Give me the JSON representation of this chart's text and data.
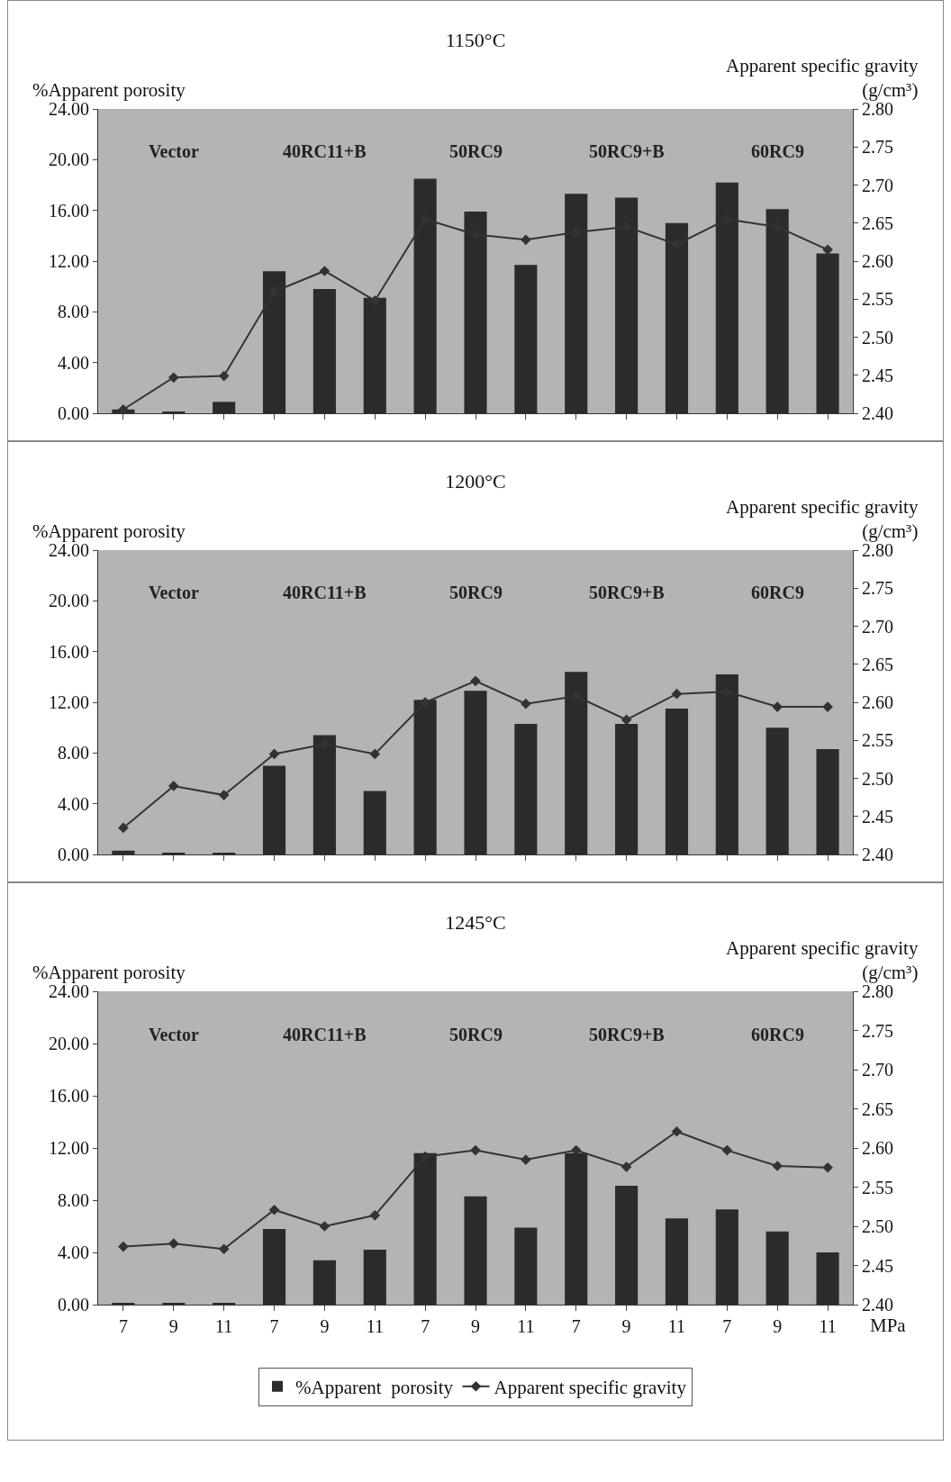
{
  "chart_data": [
    {
      "type": "bar",
      "title": "1150°C",
      "ylabel": "%Apparent porosity",
      "y2label": "Apparent specific gravity (g/cm³)",
      "tick_labels": "y",
      "legend": false,
      "grid": false,
      "annotations": [
        "Vector",
        "40RC11+B",
        "50RC9",
        "50RC9+B",
        "60RC9"
      ],
      "categories": [
        "7",
        "9",
        "11",
        "7",
        "9",
        "11",
        "7",
        "9",
        "11",
        "7",
        "9",
        "11",
        "7",
        "9",
        "11"
      ],
      "ylim": [
        0,
        24
      ],
      "yticks": [
        {
          "value": 0,
          "label": "0.00"
        },
        {
          "value": 4,
          "label": "4.00"
        },
        {
          "value": 8,
          "label": "8.00"
        },
        {
          "value": 12,
          "label": "12.00"
        },
        {
          "value": 16,
          "label": "16.00"
        },
        {
          "value": 20,
          "label": "20.00"
        },
        {
          "value": 24,
          "label": "24.00"
        }
      ],
      "y2lim": [
        2.4,
        2.8
      ],
      "y2ticks": [
        {
          "value": 2.4,
          "label": "2.40"
        },
        {
          "value": 2.45,
          "label": "2.45"
        },
        {
          "value": 2.5,
          "label": "2.50"
        },
        {
          "value": 2.55,
          "label": "2.55"
        },
        {
          "value": 2.6,
          "label": "2.60"
        },
        {
          "value": 2.65,
          "label": "2.65"
        },
        {
          "value": 2.7,
          "label": "2.70"
        },
        {
          "value": 2.75,
          "label": "2.75"
        },
        {
          "value": 2.8,
          "label": "2.80"
        }
      ],
      "series": [
        {
          "color": "#2b2b2b",
          "values": [
            0.3,
            0.1,
            0.9,
            11.2,
            9.8,
            9.1,
            18.5,
            15.9,
            11.7,
            17.3,
            17.0,
            15.0,
            18.2,
            16.1,
            12.6
          ]
        },
        {
          "type": "line",
          "axis": "y2",
          "color": "#333333",
          "marker": "diamond",
          "line_style": "solid",
          "values": [
            2.405,
            2.447,
            2.449,
            2.56,
            2.587,
            2.548,
            2.655,
            2.635,
            2.628,
            2.638,
            2.645,
            2.622,
            2.655,
            2.645,
            2.615
          ]
        }
      ]
    },
    {
      "type": "bar",
      "title": "1200°C",
      "ylabel": "%Apparent porosity",
      "y2label": "Apparent specific gravity (g/cm³)",
      "tick_labels": "y",
      "legend": false,
      "grid": false,
      "annotations": [
        "Vector",
        "40RC11+B",
        "50RC9",
        "50RC9+B",
        "60RC9"
      ],
      "categories": [
        "7",
        "9",
        "11",
        "7",
        "9",
        "11",
        "7",
        "9",
        "11",
        "7",
        "9",
        "11",
        "7",
        "9",
        "11"
      ],
      "ylim": [
        0,
        24
      ],
      "yticks": [
        {
          "value": 0,
          "label": "0.00"
        },
        {
          "value": 4,
          "label": "4.00"
        },
        {
          "value": 8,
          "label": "8.00"
        },
        {
          "value": 12,
          "label": "12.00"
        },
        {
          "value": 16,
          "label": "16.00"
        },
        {
          "value": 20,
          "label": "20.00"
        },
        {
          "value": 24,
          "label": "24.00"
        }
      ],
      "y2lim": [
        2.4,
        2.8
      ],
      "y2ticks": [
        {
          "value": 2.4,
          "label": "2.40"
        },
        {
          "value": 2.45,
          "label": "2.45"
        },
        {
          "value": 2.5,
          "label": "2.50"
        },
        {
          "value": 2.55,
          "label": "2.55"
        },
        {
          "value": 2.6,
          "label": "2.60"
        },
        {
          "value": 2.65,
          "label": "2.65"
        },
        {
          "value": 2.7,
          "label": "2.70"
        },
        {
          "value": 2.75,
          "label": "2.75"
        },
        {
          "value": 2.8,
          "label": "2.80"
        }
      ],
      "series": [
        {
          "color": "#2b2b2b",
          "values": [
            0.3,
            0.1,
            0.1,
            7.0,
            9.4,
            5.0,
            12.2,
            12.9,
            10.3,
            14.4,
            10.3,
            11.5,
            14.2,
            10.0,
            8.3
          ]
        },
        {
          "type": "line",
          "axis": "y2",
          "color": "#333333",
          "marker": "diamond",
          "line_style": "solid",
          "values": [
            2.435,
            2.49,
            2.478,
            2.532,
            2.545,
            2.532,
            2.6,
            2.628,
            2.598,
            2.608,
            2.577,
            2.611,
            2.614,
            2.594,
            2.594
          ]
        }
      ]
    },
    {
      "type": "bar",
      "title": "1245°C",
      "ylabel": "%Apparent porosity",
      "y2label": "Apparent specific gravity (g/cm³)",
      "xlabel": "MPa",
      "legend": "bottom",
      "grid": false,
      "annotations": [
        "Vector",
        "40RC11+B",
        "50RC9",
        "50RC9+B",
        "60RC9"
      ],
      "categories": [
        "7",
        "9",
        "11",
        "7",
        "9",
        "11",
        "7",
        "9",
        "11",
        "7",
        "9",
        "11",
        "7",
        "9",
        "11"
      ],
      "ylim": [
        0,
        24
      ],
      "yticks": [
        {
          "value": 0,
          "label": "0.00"
        },
        {
          "value": 4,
          "label": "4.00"
        },
        {
          "value": 8,
          "label": "8.00"
        },
        {
          "value": 12,
          "label": "12.00"
        },
        {
          "value": 16,
          "label": "16.00"
        },
        {
          "value": 20,
          "label": "20.00"
        },
        {
          "value": 24,
          "label": "24.00"
        }
      ],
      "y2lim": [
        2.4,
        2.8
      ],
      "y2ticks": [
        {
          "value": 2.4,
          "label": "2.40"
        },
        {
          "value": 2.45,
          "label": "2.45"
        },
        {
          "value": 2.5,
          "label": "2.50"
        },
        {
          "value": 2.55,
          "label": "2.55"
        },
        {
          "value": 2.6,
          "label": "2.60"
        },
        {
          "value": 2.65,
          "label": "2.65"
        },
        {
          "value": 2.7,
          "label": "2.70"
        },
        {
          "value": 2.75,
          "label": "2.75"
        },
        {
          "value": 2.8,
          "label": "2.80"
        }
      ],
      "series": [
        {
          "name": "%Apparent  porosity",
          "color": "#2b2b2b",
          "values": [
            0.1,
            0.1,
            0.1,
            5.8,
            3.4,
            4.2,
            11.6,
            8.3,
            5.9,
            11.6,
            9.1,
            6.6,
            7.3,
            5.6,
            4.0
          ]
        },
        {
          "name": "Apparent specific gravity",
          "type": "line",
          "axis": "y2",
          "color": "#333333",
          "marker": "diamond",
          "line_style": "solid",
          "values": [
            2.474,
            2.478,
            2.471,
            2.521,
            2.5,
            2.514,
            2.589,
            2.597,
            2.585,
            2.597,
            2.576,
            2.621,
            2.597,
            2.577,
            2.575
          ]
        }
      ]
    }
  ]
}
